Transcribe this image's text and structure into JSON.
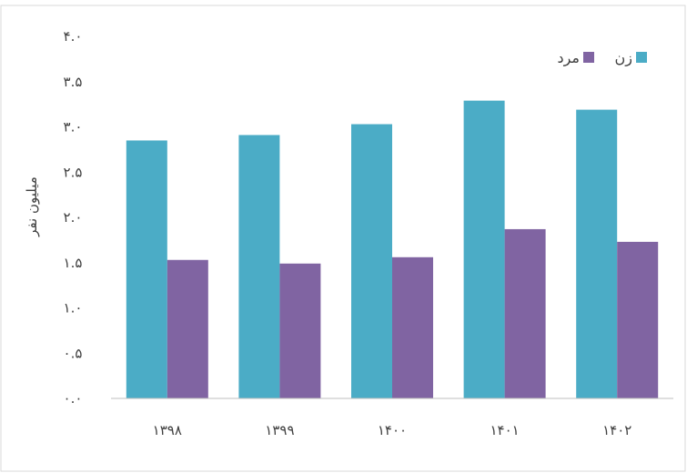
{
  "chart_data": {
    "type": "bar",
    "title": "",
    "xlabel": "",
    "ylabel": "میلیون نفر",
    "categories": [
      "۱۳۹۸",
      "۱۳۹۹",
      "۱۴۰۰",
      "۱۴۰۱",
      "۱۴۰۲"
    ],
    "series": [
      {
        "name": "زن",
        "color": "#4bacc6",
        "values": [
          2.85,
          2.91,
          3.03,
          3.29,
          3.19
        ]
      },
      {
        "name": "مرد",
        "color": "#8064a2",
        "values": [
          1.53,
          1.49,
          1.56,
          1.87,
          1.73
        ]
      }
    ],
    "ylim": [
      0,
      4
    ],
    "yticks": [
      "۰.۰",
      "۰.۵",
      "۱.۰",
      "۱.۵",
      "۲.۰",
      "۲.۵",
      "۳.۰",
      "۳.۵",
      "۴.۰"
    ],
    "ytick_values": [
      0,
      0.5,
      1,
      1.5,
      2,
      2.5,
      3,
      3.5,
      4
    ],
    "grid": false,
    "legend": "top-right"
  }
}
